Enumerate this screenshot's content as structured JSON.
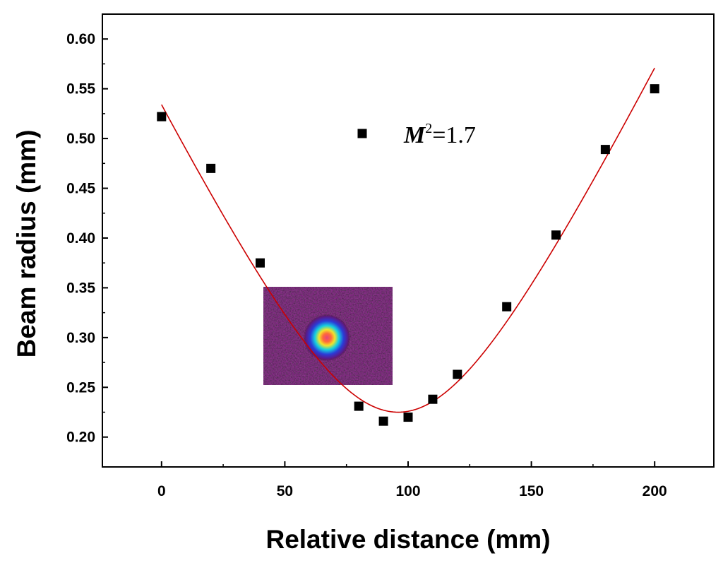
{
  "chart_data": {
    "type": "scatter",
    "xlabel": "Relative distance (mm)",
    "ylabel": "Beam radius (mm)",
    "xlim": [
      -24,
      224
    ],
    "ylim": [
      0.17,
      0.625
    ],
    "x_ticks": [
      0,
      50,
      100,
      150,
      200
    ],
    "x_tick_labels": [
      "0",
      "50",
      "100",
      "150",
      "200"
    ],
    "y_ticks": [
      0.2,
      0.25,
      0.3,
      0.35,
      0.4,
      0.45,
      0.5,
      0.55,
      0.6
    ],
    "y_tick_labels": [
      "0.20",
      "0.25",
      "0.30",
      "0.35",
      "0.40",
      "0.45",
      "0.50",
      "0.55",
      "0.60"
    ],
    "grid": false,
    "legend": "none",
    "annotation": {
      "symbol": "M",
      "superscript": "2",
      "text": "=1.7"
    },
    "series": [
      {
        "kind": "points",
        "marker": "square",
        "color": "#000000",
        "points": [
          {
            "x": 0,
            "y": 0.522
          },
          {
            "x": 20,
            "y": 0.47
          },
          {
            "x": 40,
            "y": 0.375
          },
          {
            "x": 80,
            "y": 0.231
          },
          {
            "x": 90,
            "y": 0.216
          },
          {
            "x": 100,
            "y": 0.22
          },
          {
            "x": 110,
            "y": 0.238
          },
          {
            "x": 120,
            "y": 0.263
          },
          {
            "x": 140,
            "y": 0.331
          },
          {
            "x": 160,
            "y": 0.403
          },
          {
            "x": 180,
            "y": 0.489
          },
          {
            "x": 200,
            "y": 0.55
          }
        ]
      },
      {
        "kind": "fit",
        "color": "#cc0000",
        "model": "w(z) = w0 * sqrt(1 + ((z - z0)/zR)^2)",
        "w0": 0.225,
        "z0": 96,
        "zR": 44.6,
        "x_range": [
          0,
          200
        ]
      }
    ],
    "inset": {
      "type": "beam-profile-image",
      "colormap": [
        "#3a0a3e",
        "#2b3bd8",
        "#14d0e0",
        "#f2e32a",
        "#ff6a3a",
        "#e8447a"
      ]
    }
  }
}
